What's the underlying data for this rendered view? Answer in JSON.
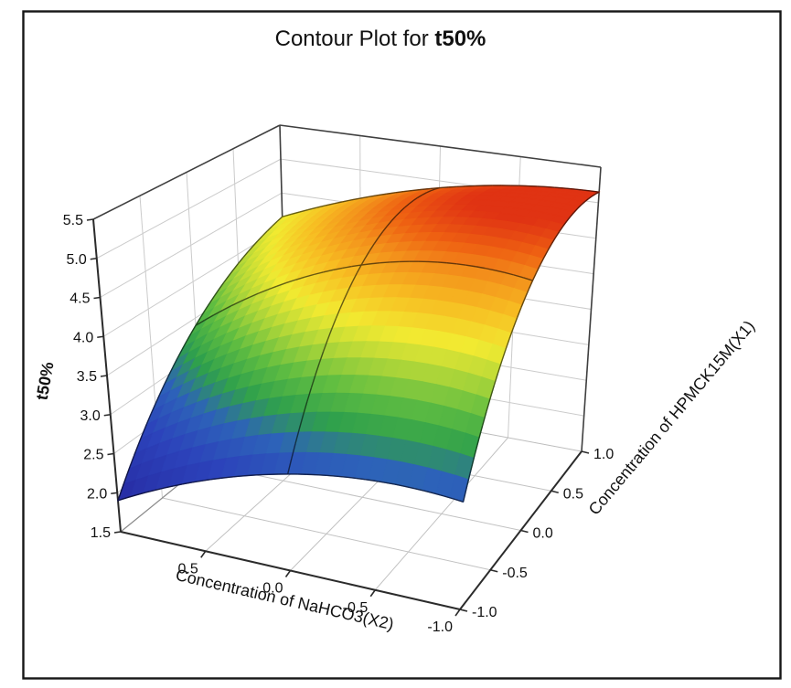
{
  "title": {
    "prefix": "Contour Plot for ",
    "emphasis": "t50%"
  },
  "chart_data": {
    "type": "surface3d",
    "title": "Contour Plot for t50%",
    "z_axis": {
      "label": "t50%",
      "min": 1.5,
      "max": 5.5,
      "ticks": [
        5.5,
        5.0,
        4.5,
        4.0,
        3.5,
        3.0,
        2.5,
        2.0,
        1.5
      ]
    },
    "x2_axis": {
      "label": "Concentration of NaHCO3(X2)",
      "min": -1.0,
      "max": 1.0,
      "ticks": [
        0.5,
        0.0,
        -0.5,
        -1.0
      ]
    },
    "x1_axis": {
      "label": "Concentration of HPMCK15M(X1)",
      "min": -1.0,
      "max": 1.0,
      "ticks": [
        -1.0,
        -0.5,
        0.0,
        0.5,
        1.0
      ]
    },
    "surface": {
      "x1_levels": [
        -1,
        0,
        1
      ],
      "x2_levels": [
        1,
        0,
        -1
      ],
      "z_grid": [
        [
          1.9,
          2.7,
          2.8
        ],
        [
          3.4,
          4.6,
          4.75
        ],
        [
          4.15,
          4.9,
          5.15
        ]
      ],
      "z_min_observed": 1.9,
      "z_max_observed": 5.15
    },
    "colormap": [
      [
        0.0,
        "#272ba3"
      ],
      [
        0.2,
        "#2c43bb"
      ],
      [
        0.32,
        "#2d62b9"
      ],
      [
        0.42,
        "#2fa04c"
      ],
      [
        0.52,
        "#5fbd41"
      ],
      [
        0.62,
        "#b5d838"
      ],
      [
        0.7,
        "#f2ea31"
      ],
      [
        0.8,
        "#f7bc22"
      ],
      [
        0.88,
        "#f3901b"
      ],
      [
        0.94,
        "#ee6012"
      ],
      [
        1.0,
        "#e03313"
      ]
    ],
    "grid_on": true,
    "legend": "none"
  }
}
